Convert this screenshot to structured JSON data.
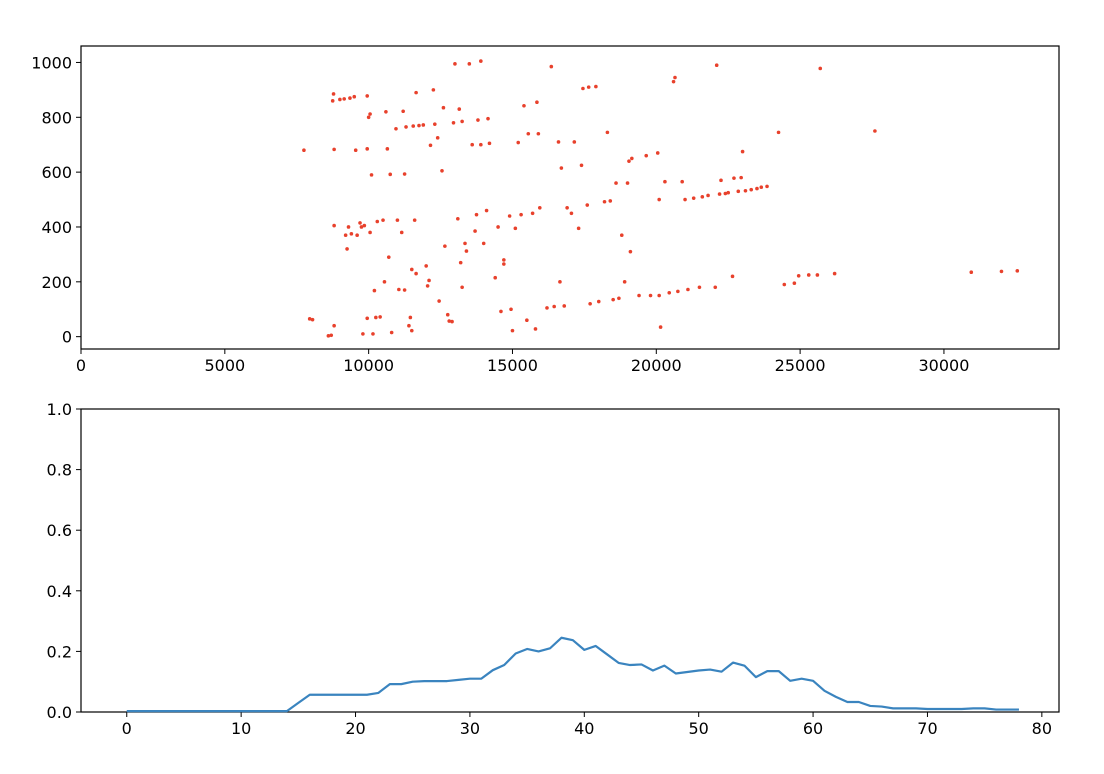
{
  "chart_data": [
    {
      "type": "scatter",
      "xlim": [
        0,
        34000
      ],
      "ylim": [
        -45,
        1060
      ],
      "x_ticks": [
        0,
        5000,
        10000,
        15000,
        20000,
        25000,
        30000
      ],
      "y_ticks": [
        0,
        200,
        400,
        600,
        800,
        1000
      ],
      "x_tick_labels": [
        "0",
        "5000",
        "10000",
        "15000",
        "20000",
        "25000",
        "30000"
      ],
      "y_tick_labels": [
        "0",
        "200",
        "400",
        "600",
        "800",
        "1000"
      ],
      "grid": false,
      "color": "#e8412c",
      "points": [
        [
          7750,
          680
        ],
        [
          7950,
          65
        ],
        [
          8050,
          62
        ],
        [
          8600,
          3
        ],
        [
          8700,
          5
        ],
        [
          8750,
          860
        ],
        [
          8780,
          885
        ],
        [
          8800,
          683
        ],
        [
          8800,
          40
        ],
        [
          8800,
          405
        ],
        [
          9000,
          865
        ],
        [
          9150,
          867
        ],
        [
          9200,
          370
        ],
        [
          9250,
          320
        ],
        [
          9300,
          400
        ],
        [
          9350,
          870
        ],
        [
          9400,
          375
        ],
        [
          9500,
          875
        ],
        [
          9550,
          680
        ],
        [
          9600,
          370
        ],
        [
          9700,
          415
        ],
        [
          9750,
          400
        ],
        [
          9800,
          10
        ],
        [
          9850,
          405
        ],
        [
          9950,
          878
        ],
        [
          9950,
          685
        ],
        [
          9950,
          67
        ],
        [
          10000,
          800
        ],
        [
          10050,
          812
        ],
        [
          10050,
          380
        ],
        [
          10100,
          590
        ],
        [
          10150,
          10
        ],
        [
          10200,
          168
        ],
        [
          10250,
          70
        ],
        [
          10300,
          420
        ],
        [
          10400,
          72
        ],
        [
          10500,
          425
        ],
        [
          10550,
          200
        ],
        [
          10600,
          820
        ],
        [
          10650,
          685
        ],
        [
          10700,
          290
        ],
        [
          10750,
          592
        ],
        [
          10800,
          15
        ],
        [
          10950,
          758
        ],
        [
          11000,
          425
        ],
        [
          11050,
          172
        ],
        [
          11150,
          380
        ],
        [
          11200,
          822
        ],
        [
          11250,
          593
        ],
        [
          11250,
          170
        ],
        [
          11300,
          765
        ],
        [
          11400,
          40
        ],
        [
          11450,
          70
        ],
        [
          11500,
          22
        ],
        [
          11500,
          245
        ],
        [
          11550,
          768
        ],
        [
          11600,
          425
        ],
        [
          11650,
          890
        ],
        [
          11650,
          230
        ],
        [
          11750,
          770
        ],
        [
          11900,
          772
        ],
        [
          12000,
          258
        ],
        [
          12050,
          185
        ],
        [
          12100,
          205
        ],
        [
          12150,
          698
        ],
        [
          12250,
          900
        ],
        [
          12300,
          775
        ],
        [
          12400,
          725
        ],
        [
          12450,
          130
        ],
        [
          12550,
          605
        ],
        [
          12600,
          835
        ],
        [
          12650,
          330
        ],
        [
          12750,
          80
        ],
        [
          12800,
          57
        ],
        [
          12900,
          55
        ],
        [
          12950,
          780
        ],
        [
          13000,
          995
        ],
        [
          13100,
          430
        ],
        [
          13150,
          830
        ],
        [
          13200,
          270
        ],
        [
          13250,
          785
        ],
        [
          13250,
          180
        ],
        [
          13350,
          340
        ],
        [
          13400,
          312
        ],
        [
          13500,
          995
        ],
        [
          13600,
          700
        ],
        [
          13700,
          385
        ],
        [
          13750,
          445
        ],
        [
          13800,
          790
        ],
        [
          13900,
          1005
        ],
        [
          13900,
          700
        ],
        [
          14000,
          340
        ],
        [
          14100,
          460
        ],
        [
          14150,
          795
        ],
        [
          14200,
          705
        ],
        [
          14400,
          215
        ],
        [
          14500,
          400
        ],
        [
          14600,
          92
        ],
        [
          14700,
          280
        ],
        [
          14700,
          265
        ],
        [
          14900,
          440
        ],
        [
          14950,
          100
        ],
        [
          15000,
          22
        ],
        [
          15100,
          395
        ],
        [
          15200,
          708
        ],
        [
          15300,
          445
        ],
        [
          15400,
          842
        ],
        [
          15500,
          60
        ],
        [
          15550,
          740
        ],
        [
          15700,
          450
        ],
        [
          15800,
          28
        ],
        [
          15850,
          855
        ],
        [
          15900,
          740
        ],
        [
          15950,
          470
        ],
        [
          16200,
          105
        ],
        [
          16350,
          985
        ],
        [
          16450,
          110
        ],
        [
          16600,
          710
        ],
        [
          16650,
          200
        ],
        [
          16700,
          615
        ],
        [
          16800,
          112
        ],
        [
          16900,
          470
        ],
        [
          17050,
          450
        ],
        [
          17150,
          710
        ],
        [
          17300,
          395
        ],
        [
          17400,
          625
        ],
        [
          17450,
          905
        ],
        [
          17600,
          480
        ],
        [
          17650,
          910
        ],
        [
          17700,
          120
        ],
        [
          17900,
          912
        ],
        [
          18000,
          128
        ],
        [
          18200,
          492
        ],
        [
          18300,
          745
        ],
        [
          18400,
          495
        ],
        [
          18500,
          135
        ],
        [
          18600,
          560
        ],
        [
          18700,
          140
        ],
        [
          18800,
          370
        ],
        [
          18900,
          200
        ],
        [
          19000,
          560
        ],
        [
          19050,
          640
        ],
        [
          19100,
          310
        ],
        [
          19150,
          650
        ],
        [
          19400,
          150
        ],
        [
          19650,
          660
        ],
        [
          19800,
          150
        ],
        [
          20050,
          670
        ],
        [
          20100,
          150
        ],
        [
          20100,
          500
        ],
        [
          20150,
          35
        ],
        [
          20300,
          565
        ],
        [
          20450,
          160
        ],
        [
          20600,
          930
        ],
        [
          20650,
          945
        ],
        [
          20750,
          165
        ],
        [
          20900,
          565
        ],
        [
          21000,
          500
        ],
        [
          21100,
          172
        ],
        [
          21300,
          505
        ],
        [
          21500,
          180
        ],
        [
          21600,
          510
        ],
        [
          21800,
          515
        ],
        [
          22050,
          180
        ],
        [
          22100,
          990
        ],
        [
          22200,
          520
        ],
        [
          22250,
          570
        ],
        [
          22400,
          522
        ],
        [
          22500,
          525
        ],
        [
          22650,
          220
        ],
        [
          22700,
          578
        ],
        [
          22850,
          530
        ],
        [
          22950,
          580
        ],
        [
          23000,
          675
        ],
        [
          23100,
          532
        ],
        [
          23300,
          536
        ],
        [
          23500,
          540
        ],
        [
          23650,
          545
        ],
        [
          23850,
          548
        ],
        [
          24250,
          745
        ],
        [
          24450,
          190
        ],
        [
          24800,
          195
        ],
        [
          24950,
          222
        ],
        [
          25300,
          225
        ],
        [
          25700,
          978
        ],
        [
          25600,
          225
        ],
        [
          26200,
          230
        ],
        [
          27600,
          750
        ],
        [
          30950,
          235
        ],
        [
          32000,
          238
        ],
        [
          32550,
          240
        ]
      ]
    },
    {
      "type": "line",
      "xlim": [
        -4,
        81.5
      ],
      "ylim": [
        0.0,
        1.0
      ],
      "x_ticks": [
        0,
        10,
        20,
        30,
        40,
        50,
        60,
        70,
        80
      ],
      "y_ticks": [
        0.0,
        0.2,
        0.4,
        0.6,
        0.8,
        1.0
      ],
      "x_tick_labels": [
        "0",
        "10",
        "20",
        "30",
        "40",
        "50",
        "60",
        "70",
        "80"
      ],
      "y_tick_labels": [
        "0.0",
        "0.2",
        "0.4",
        "0.6",
        "0.8",
        "1.0"
      ],
      "grid": false,
      "color": "#3a84bf",
      "x": [
        0,
        1,
        2,
        3,
        4,
        5,
        6,
        7,
        8,
        9,
        10,
        11,
        12,
        13,
        14,
        15,
        16,
        17,
        18,
        19,
        20,
        21,
        22,
        23,
        24,
        25,
        26,
        27,
        28,
        29,
        30,
        31,
        32,
        33,
        34,
        35,
        36,
        37,
        38,
        39,
        40,
        41,
        42,
        43,
        44,
        45,
        46,
        47,
        48,
        49,
        50,
        51,
        52,
        53,
        54,
        55,
        56,
        57,
        58,
        59,
        60,
        61,
        62,
        63,
        64,
        65,
        66,
        67,
        68,
        69,
        70,
        71,
        72,
        73,
        74,
        75,
        76,
        77,
        78
      ],
      "y": [
        0.003,
        0.003,
        0.003,
        0.003,
        0.003,
        0.003,
        0.003,
        0.003,
        0.003,
        0.003,
        0.003,
        0.003,
        0.003,
        0.003,
        0.003,
        0.03,
        0.057,
        0.057,
        0.057,
        0.057,
        0.057,
        0.057,
        0.063,
        0.092,
        0.092,
        0.1,
        0.102,
        0.102,
        0.102,
        0.106,
        0.11,
        0.11,
        0.138,
        0.155,
        0.193,
        0.208,
        0.2,
        0.21,
        0.245,
        0.237,
        0.205,
        0.218,
        0.19,
        0.162,
        0.155,
        0.157,
        0.137,
        0.153,
        0.127,
        0.132,
        0.137,
        0.14,
        0.133,
        0.163,
        0.153,
        0.115,
        0.135,
        0.135,
        0.103,
        0.11,
        0.103,
        0.07,
        0.05,
        0.033,
        0.033,
        0.02,
        0.018,
        0.012,
        0.012,
        0.012,
        0.01,
        0.01,
        0.01,
        0.01,
        0.012,
        0.012,
        0.008,
        0.008,
        0.008
      ]
    }
  ]
}
